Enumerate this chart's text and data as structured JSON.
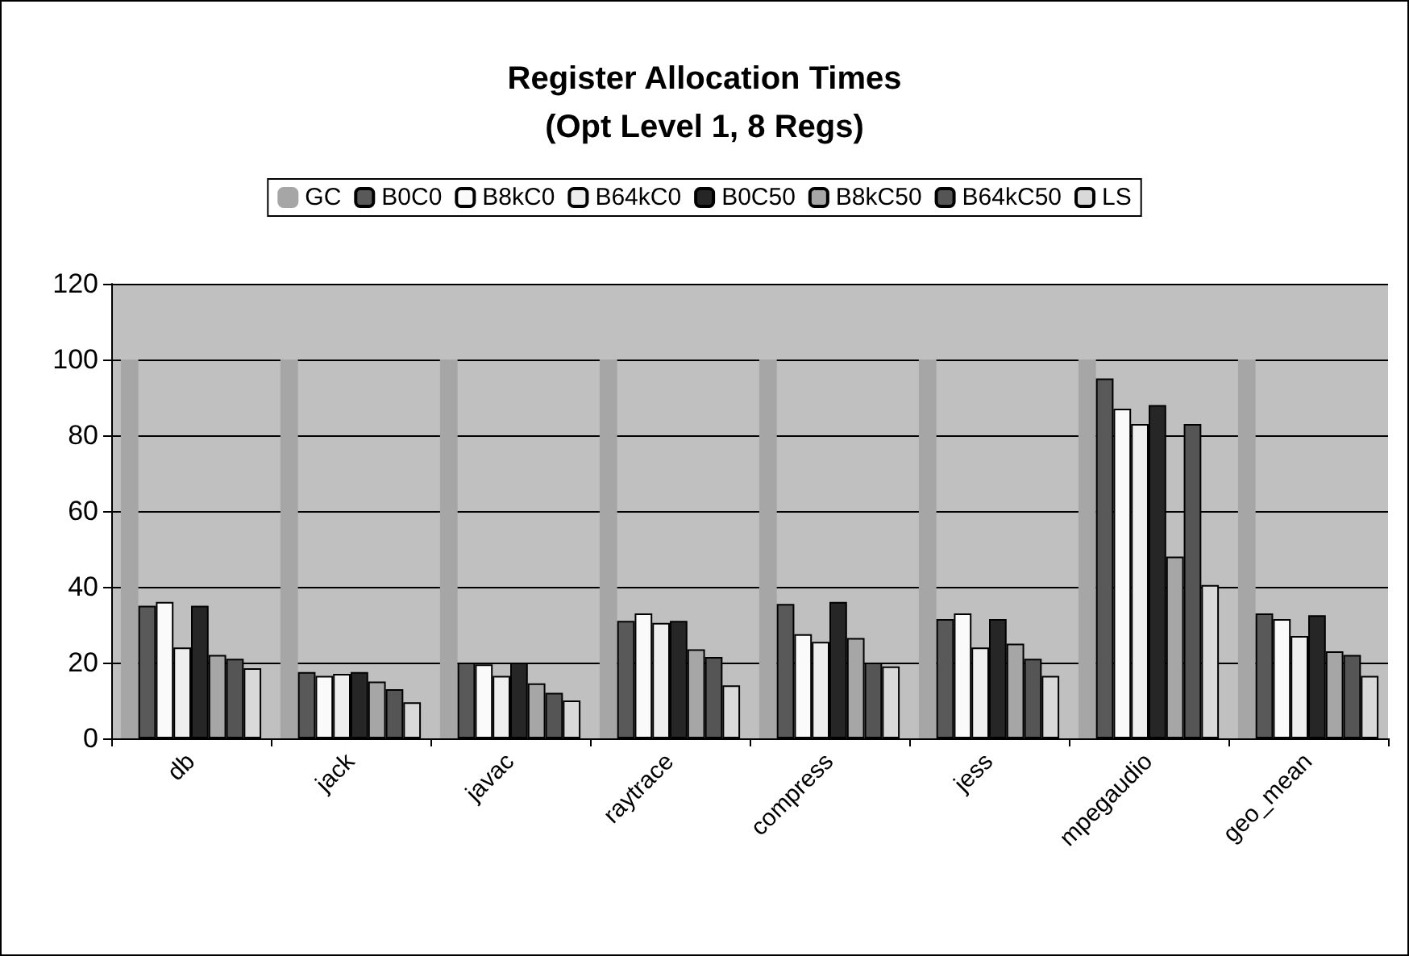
{
  "chart_data": {
    "type": "bar",
    "title": "Register Allocation Times\n(Opt Level 1, 8 Regs)",
    "categories": [
      "db",
      "jack",
      "javac",
      "raytrace",
      "compress",
      "jess",
      "mpegaudio",
      "geo_mean"
    ],
    "series": [
      {
        "name": "GC",
        "color": "#a6a6a6",
        "values": [
          100,
          100,
          100,
          100,
          100,
          100,
          100,
          100
        ]
      },
      {
        "name": "B0C0",
        "color": "#595959",
        "values": [
          35,
          17.5,
          20,
          31,
          35.5,
          31.5,
          95,
          33
        ]
      },
      {
        "name": "B8kC0",
        "color": "#fafafa",
        "values": [
          36,
          16.5,
          19.5,
          33,
          27.5,
          33,
          87,
          31.5
        ]
      },
      {
        "name": "B64kC0",
        "color": "#eeeeee",
        "values": [
          24,
          17,
          16.5,
          30.5,
          25.5,
          24,
          83,
          27
        ]
      },
      {
        "name": "B0C50",
        "color": "#262626",
        "values": [
          35,
          17.5,
          20,
          31,
          36,
          31.5,
          88,
          32.5
        ]
      },
      {
        "name": "B8kC50",
        "color": "#a6a6a6",
        "values": [
          22,
          15,
          14.5,
          23.5,
          26.5,
          25,
          48,
          23
        ]
      },
      {
        "name": "B64kC50",
        "color": "#555555",
        "values": [
          21,
          13,
          12,
          21.5,
          20,
          21,
          83,
          22
        ]
      },
      {
        "name": "LS",
        "color": "#d9d9d9",
        "values": [
          18.5,
          9.5,
          10,
          14,
          19,
          16.5,
          40.5,
          16.5
        ]
      }
    ],
    "ylim": [
      0,
      120
    ],
    "yticks": [
      0,
      20,
      40,
      60,
      80,
      100,
      120
    ],
    "grid": "y",
    "legend": "top"
  }
}
